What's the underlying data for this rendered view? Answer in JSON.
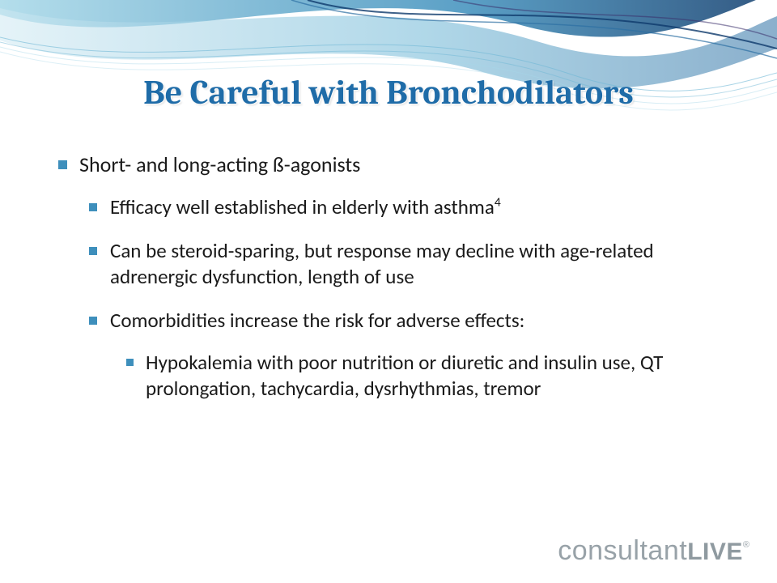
{
  "slide": {
    "title": "Be Careful with Bronchodilators",
    "title_color": "#1f6ca8",
    "title_fontsize": 42,
    "bullet_color": "#3e8fbc",
    "body_color": "#1a1a1a",
    "body_fontsize": 26,
    "bullets": [
      {
        "text": "Short- and long-acting ß-agonists",
        "children": [
          {
            "text_html": "Efficacy well established in elderly with asthma<sup>4</sup>"
          },
          {
            "text": "Can be steroid-sparing, but response may decline with age-related adrenergic dysfunction, length of use"
          },
          {
            "text": "Comorbidities increase the risk for adverse effects:",
            "children": [
              {
                "text": "Hypokalemia with poor nutrition or diuretic and insulin use, QT prolongation, tachycardia, dysrhythmias, tremor"
              }
            ]
          }
        ]
      }
    ]
  },
  "logo": {
    "word1": "consultant",
    "word2": "LIVE",
    "mark": "®",
    "color": "#98a2a8"
  },
  "decoration": {
    "wave_colors": [
      "#0e3a6b",
      "#2c6fa3",
      "#6fb7d6",
      "#a7d8e8",
      "#cfe9f2"
    ],
    "background_color": "#ffffff"
  }
}
